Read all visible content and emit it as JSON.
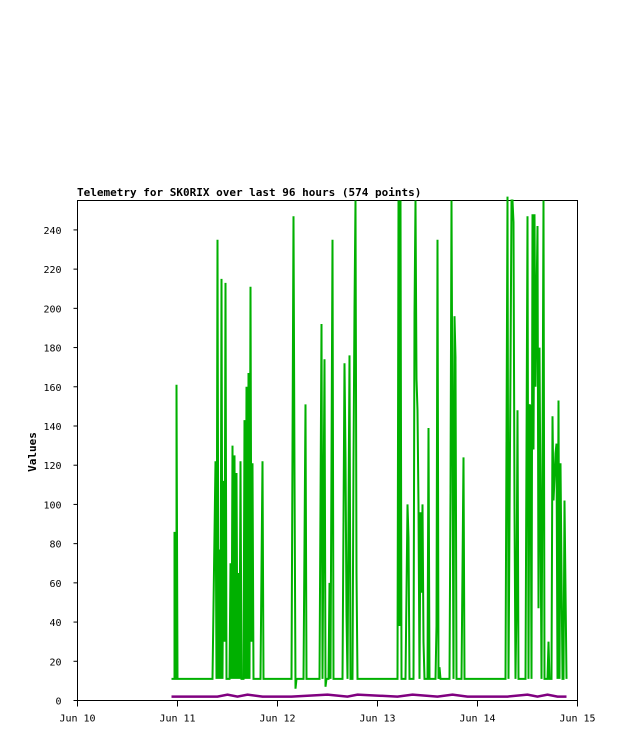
{
  "chart_data": {
    "type": "line",
    "title": "Telemetry for SK0RIX over last 96 hours (574 points)",
    "ylabel": "Values",
    "xlabel": "",
    "ylim": [
      0,
      255
    ],
    "xlim": [
      "Jun 10",
      "Jun 15"
    ],
    "x_ticks": [
      "Jun 10",
      "Jun 11",
      "Jun 12",
      "Jun 13",
      "Jun 14",
      "Jun 15"
    ],
    "y_ticks": [
      0,
      20,
      40,
      60,
      80,
      100,
      120,
      140,
      160,
      180,
      200,
      220,
      240
    ],
    "grid": false,
    "legend": "none",
    "series": [
      {
        "color": "#00b000",
        "points": [
          [
            10.94,
            11
          ],
          [
            10.97,
            11
          ],
          [
            10.97,
            86
          ],
          [
            10.98,
            11
          ],
          [
            10.99,
            11
          ],
          [
            10.99,
            161
          ],
          [
            11.0,
            11
          ],
          [
            11.35,
            11
          ],
          [
            11.38,
            122
          ],
          [
            11.39,
            11
          ],
          [
            11.4,
            235
          ],
          [
            11.41,
            11
          ],
          [
            11.42,
            77
          ],
          [
            11.43,
            11
          ],
          [
            11.44,
            215
          ],
          [
            11.45,
            11
          ],
          [
            11.46,
            112
          ],
          [
            11.47,
            30
          ],
          [
            11.48,
            213
          ],
          [
            11.49,
            11
          ],
          [
            11.52,
            11
          ],
          [
            11.53,
            70
          ],
          [
            11.54,
            11
          ],
          [
            11.55,
            130
          ],
          [
            11.56,
            11
          ],
          [
            11.57,
            125
          ],
          [
            11.58,
            11
          ],
          [
            11.59,
            116
          ],
          [
            11.6,
            11
          ],
          [
            11.61,
            65
          ],
          [
            11.62,
            11
          ],
          [
            11.63,
            122
          ],
          [
            11.64,
            11
          ],
          [
            11.66,
            11
          ],
          [
            11.67,
            143
          ],
          [
            11.68,
            11
          ],
          [
            11.69,
            160
          ],
          [
            11.7,
            11
          ],
          [
            11.71,
            167
          ],
          [
            11.72,
            11
          ],
          [
            11.73,
            211
          ],
          [
            11.74,
            30
          ],
          [
            11.75,
            121
          ],
          [
            11.76,
            11
          ],
          [
            11.83,
            11
          ],
          [
            11.84,
            67
          ],
          [
            11.85,
            122
          ],
          [
            11.86,
            11
          ],
          [
            12.14,
            11
          ],
          [
            12.15,
            129
          ],
          [
            12.16,
            247
          ],
          [
            12.17,
            115
          ],
          [
            12.18,
            6
          ],
          [
            12.19,
            11
          ],
          [
            12.26,
            11
          ],
          [
            12.27,
            80
          ],
          [
            12.28,
            151
          ],
          [
            12.29,
            11
          ],
          [
            12.42,
            11
          ],
          [
            12.43,
            101
          ],
          [
            12.44,
            192
          ],
          [
            12.45,
            11
          ],
          [
            12.46,
            95
          ],
          [
            12.47,
            174
          ],
          [
            12.48,
            7
          ],
          [
            12.49,
            11
          ],
          [
            12.51,
            11
          ],
          [
            12.52,
            60
          ],
          [
            12.53,
            11
          ],
          [
            12.54,
            123
          ],
          [
            12.55,
            235
          ],
          [
            12.56,
            11
          ],
          [
            12.65,
            11
          ],
          [
            12.66,
            92
          ],
          [
            12.67,
            172
          ],
          [
            12.68,
            124
          ],
          [
            12.69,
            44
          ],
          [
            12.7,
            11
          ],
          [
            12.71,
            94
          ],
          [
            12.72,
            176
          ],
          [
            12.73,
            11
          ],
          [
            12.75,
            11
          ],
          [
            12.76,
            122
          ],
          [
            12.77,
            200
          ],
          [
            12.78,
            255
          ],
          [
            12.79,
            65
          ],
          [
            12.8,
            11
          ],
          [
            13.2,
            11
          ],
          [
            13.21,
            255
          ],
          [
            13.22,
            38
          ],
          [
            13.23,
            255
          ],
          [
            13.24,
            11
          ],
          [
            13.28,
            11
          ],
          [
            13.29,
            55
          ],
          [
            13.3,
            100
          ],
          [
            13.31,
            83
          ],
          [
            13.32,
            11
          ],
          [
            13.36,
            11
          ],
          [
            13.37,
            197
          ],
          [
            13.38,
            255
          ],
          [
            13.39,
            164
          ],
          [
            13.4,
            148
          ],
          [
            13.41,
            99
          ],
          [
            13.42,
            11
          ],
          [
            13.43,
            96
          ],
          [
            13.44,
            55
          ],
          [
            13.45,
            100
          ],
          [
            13.46,
            30
          ],
          [
            13.47,
            11
          ],
          [
            13.5,
            11
          ],
          [
            13.51,
            139
          ],
          [
            13.52,
            11
          ],
          [
            13.58,
            11
          ],
          [
            13.59,
            38
          ],
          [
            13.6,
            235
          ],
          [
            13.61,
            11
          ],
          [
            13.62,
            17
          ],
          [
            13.63,
            11
          ],
          [
            13.72,
            11
          ],
          [
            13.73,
            107
          ],
          [
            13.74,
            255
          ],
          [
            13.75,
            131
          ],
          [
            13.76,
            11
          ],
          [
            13.77,
            196
          ],
          [
            13.78,
            175
          ],
          [
            13.79,
            11
          ],
          [
            13.84,
            11
          ],
          [
            13.85,
            67
          ],
          [
            13.86,
            124
          ],
          [
            13.87,
            11
          ],
          [
            14.28,
            11
          ],
          [
            14.29,
            134
          ],
          [
            14.3,
            257
          ],
          [
            14.31,
            11
          ],
          [
            14.33,
            170
          ],
          [
            14.34,
            255
          ],
          [
            14.35,
            255
          ],
          [
            14.36,
            244
          ],
          [
            14.37,
            99
          ],
          [
            14.38,
            11
          ],
          [
            14.39,
            50
          ],
          [
            14.4,
            148
          ],
          [
            14.41,
            11
          ],
          [
            14.48,
            11
          ],
          [
            14.49,
            129
          ],
          [
            14.5,
            247
          ],
          [
            14.51,
            11
          ],
          [
            14.52,
            151
          ],
          [
            14.53,
            150
          ],
          [
            14.54,
            11
          ],
          [
            14.55,
            248
          ],
          [
            14.56,
            128
          ],
          [
            14.57,
            248
          ],
          [
            14.58,
            160
          ],
          [
            14.59,
            203
          ],
          [
            14.6,
            242
          ],
          [
            14.61,
            47
          ],
          [
            14.62,
            180
          ],
          [
            14.63,
            95
          ],
          [
            14.64,
            11
          ],
          [
            14.65,
            122
          ],
          [
            14.66,
            255
          ],
          [
            14.67,
            11
          ],
          [
            14.7,
            11
          ],
          [
            14.71,
            30
          ],
          [
            14.72,
            11
          ],
          [
            14.74,
            11
          ],
          [
            14.75,
            145
          ],
          [
            14.76,
            102
          ],
          [
            14.77,
            113
          ],
          [
            14.78,
            126
          ],
          [
            14.79,
            131
          ],
          [
            14.8,
            11
          ],
          [
            14.81,
            153
          ],
          [
            14.82,
            11
          ],
          [
            14.83,
            121
          ],
          [
            14.84,
            66
          ],
          [
            14.85,
            11
          ],
          [
            14.86,
            11
          ],
          [
            14.87,
            102
          ],
          [
            14.88,
            57
          ],
          [
            14.89,
            11
          ]
        ]
      },
      {
        "color": "#800080",
        "points": [
          [
            10.94,
            2
          ],
          [
            11.0,
            2
          ],
          [
            11.4,
            2
          ],
          [
            11.5,
            3
          ],
          [
            11.6,
            2
          ],
          [
            11.7,
            3
          ],
          [
            11.85,
            2
          ],
          [
            12.14,
            2
          ],
          [
            12.5,
            3
          ],
          [
            12.7,
            2
          ],
          [
            12.8,
            3
          ],
          [
            13.2,
            2
          ],
          [
            13.35,
            3
          ],
          [
            13.6,
            2
          ],
          [
            13.75,
            3
          ],
          [
            13.9,
            2
          ],
          [
            14.3,
            2
          ],
          [
            14.5,
            3
          ],
          [
            14.6,
            2
          ],
          [
            14.7,
            3
          ],
          [
            14.8,
            2
          ],
          [
            14.89,
            2
          ]
        ]
      }
    ]
  }
}
